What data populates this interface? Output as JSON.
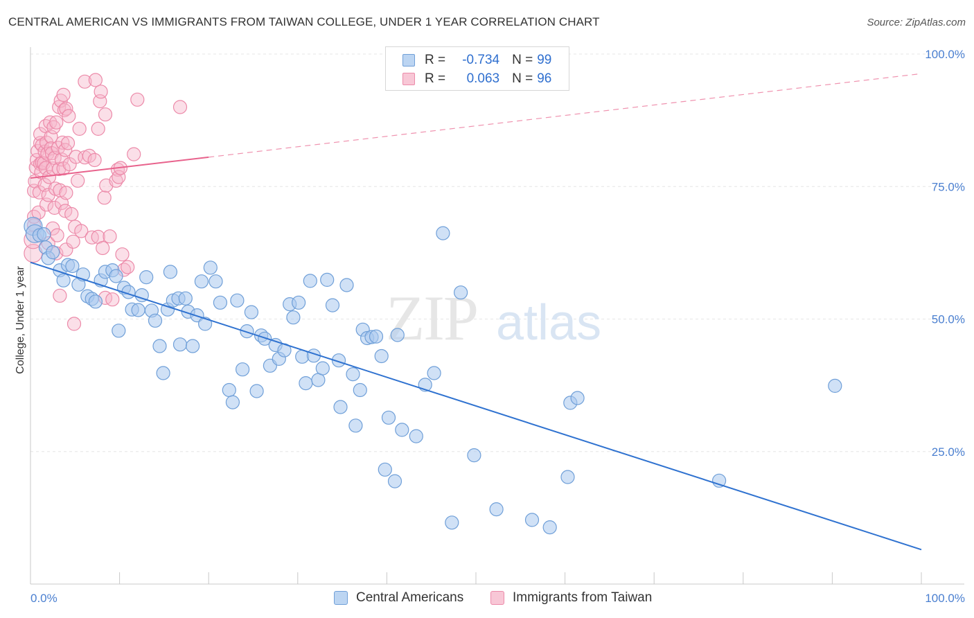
{
  "chart_data": {
    "type": "scatter",
    "title": "CENTRAL AMERICAN VS IMMIGRANTS FROM TAIWAN COLLEGE, UNDER 1 YEAR CORRELATION CHART",
    "source": "Source: ZipAtlas.com",
    "ylabel": "College, Under 1 year",
    "xlim": [
      0,
      100
    ],
    "ylim": [
      0,
      100
    ],
    "x_tick_labels": [
      "0.0%",
      "100.0%"
    ],
    "y_tick_values": [
      25,
      50,
      75,
      100
    ],
    "y_tick_labels": [
      "25.0%",
      "50.0%",
      "75.0%",
      "100.0%"
    ],
    "watermark": {
      "zip": "ZIP",
      "atlas": "atlas"
    },
    "colors": {
      "blue_fill": "#a9c9ee",
      "blue_stroke": "#6f9fd8",
      "blue_line": "#2f72d0",
      "pink_fill": "#f6b8cb",
      "pink_stroke": "#ec8aa9",
      "pink_line": "#e8628c",
      "tick_text": "#4a7fd0",
      "grid": "#e6e6e6"
    },
    "legend": {
      "r_label": "R =",
      "n_label": "N =",
      "rows": [
        {
          "r": "-0.734",
          "n": "99"
        },
        {
          "r": "0.063",
          "n": "96"
        }
      ]
    },
    "series": [
      {
        "name": "Central Americans",
        "trend": {
          "x": [
            0,
            100
          ],
          "y": [
            60.7,
            6.5
          ],
          "dashed_after": null
        },
        "points": [
          [
            0.3,
            67.5
          ],
          [
            0.5,
            66.1
          ],
          [
            1,
            65.8
          ],
          [
            1.5,
            66
          ],
          [
            1.7,
            63.5
          ],
          [
            2,
            61.5
          ],
          [
            2.5,
            62.6
          ],
          [
            3.3,
            59.2
          ],
          [
            3.7,
            57.3
          ],
          [
            4.2,
            60.2
          ],
          [
            4.7,
            60
          ],
          [
            5.4,
            56.5
          ],
          [
            5.9,
            58.4
          ],
          [
            6.4,
            54.3
          ],
          [
            6.9,
            53.8
          ],
          [
            7.3,
            53.3
          ],
          [
            7.9,
            57.3
          ],
          [
            8.4,
            58.9
          ],
          [
            9.2,
            59.2
          ],
          [
            9.6,
            58.1
          ],
          [
            9.9,
            47.8
          ],
          [
            10.5,
            55.9
          ],
          [
            11,
            55.1
          ],
          [
            11.4,
            51.8
          ],
          [
            12.1,
            51.7
          ],
          [
            12.5,
            54.5
          ],
          [
            13,
            57.9
          ],
          [
            13.6,
            51.6
          ],
          [
            14,
            49.7
          ],
          [
            14.5,
            44.9
          ],
          [
            14.9,
            39.8
          ],
          [
            15.4,
            51.8
          ],
          [
            16,
            53.5
          ],
          [
            15.7,
            58.9
          ],
          [
            16.6,
            53.9
          ],
          [
            16.8,
            45.2
          ],
          [
            17.4,
            53.9
          ],
          [
            17.7,
            51.4
          ],
          [
            18.2,
            44.9
          ],
          [
            18.7,
            50.7
          ],
          [
            19.2,
            57.1
          ],
          [
            19.6,
            49.1
          ],
          [
            20.2,
            59.7
          ],
          [
            20.8,
            57.1
          ],
          [
            21.3,
            53.1
          ],
          [
            22.3,
            36.6
          ],
          [
            22.7,
            34.3
          ],
          [
            23.2,
            53.5
          ],
          [
            23.8,
            40.5
          ],
          [
            24.3,
            47.7
          ],
          [
            24.8,
            51.3
          ],
          [
            25.4,
            36.4
          ],
          [
            25.9,
            46.9
          ],
          [
            26.3,
            46.3
          ],
          [
            26.9,
            41.2
          ],
          [
            27.5,
            45.1
          ],
          [
            27.9,
            42.5
          ],
          [
            28.5,
            44.1
          ],
          [
            29.1,
            52.8
          ],
          [
            29.5,
            50.3
          ],
          [
            30.1,
            53.1
          ],
          [
            30.5,
            42.9
          ],
          [
            30.9,
            37.9
          ],
          [
            31.4,
            57.2
          ],
          [
            31.8,
            43.1
          ],
          [
            32.3,
            38.5
          ],
          [
            32.8,
            40.7
          ],
          [
            33.3,
            57.4
          ],
          [
            33.9,
            52.6
          ],
          [
            34.6,
            42.2
          ],
          [
            34.8,
            33.4
          ],
          [
            35.5,
            56.4
          ],
          [
            36.2,
            39.6
          ],
          [
            36.5,
            29.9
          ],
          [
            37,
            36.6
          ],
          [
            37.3,
            48
          ],
          [
            37.8,
            46.4
          ],
          [
            38.3,
            46.6
          ],
          [
            38.8,
            46.7
          ],
          [
            39.4,
            43
          ],
          [
            39.8,
            21.6
          ],
          [
            40.2,
            31.4
          ],
          [
            40.9,
            19.4
          ],
          [
            41.2,
            47
          ],
          [
            41.7,
            29.1
          ],
          [
            43.3,
            27.9
          ],
          [
            44.3,
            37.6
          ],
          [
            45.3,
            39.8
          ],
          [
            46.3,
            66.2
          ],
          [
            47.3,
            11.6
          ],
          [
            48.3,
            55
          ],
          [
            49.8,
            24.3
          ],
          [
            52.3,
            14.1
          ],
          [
            56.3,
            12.1
          ],
          [
            58.3,
            10.7
          ],
          [
            60.3,
            20.2
          ],
          [
            60.6,
            34.2
          ],
          [
            61.4,
            35.1
          ],
          [
            77.3,
            19.5
          ],
          [
            90.3,
            37.4
          ]
        ]
      },
      {
        "name": "Immigrants from Taiwan",
        "trend": {
          "x": [
            0,
            100
          ],
          "y": [
            76.6,
            96.3
          ],
          "dashed_after": 20
        },
        "points": [
          [
            0.3,
            62.4
          ],
          [
            0.3,
            65
          ],
          [
            0.4,
            67.7
          ],
          [
            0.4,
            69.3
          ],
          [
            0.4,
            74.2
          ],
          [
            0.5,
            76
          ],
          [
            0.6,
            78.6
          ],
          [
            0.7,
            80
          ],
          [
            0.8,
            81.7
          ],
          [
            0.9,
            70.1
          ],
          [
            1,
            73.9
          ],
          [
            1.1,
            79.3
          ],
          [
            1.1,
            83.2
          ],
          [
            1.1,
            84.9
          ],
          [
            1.2,
            77.7
          ],
          [
            1.3,
            79.5
          ],
          [
            1.3,
            82.8
          ],
          [
            1.5,
            79.4
          ],
          [
            1.6,
            75.3
          ],
          [
            1.6,
            81.6
          ],
          [
            1.7,
            86.4
          ],
          [
            1.7,
            78.5
          ],
          [
            1.8,
            83.3
          ],
          [
            1.8,
            71.6
          ],
          [
            1.9,
            81.2
          ],
          [
            2,
            73.4
          ],
          [
            2,
            64.3
          ],
          [
            2.1,
            76.8
          ],
          [
            2.2,
            87.1
          ],
          [
            2.3,
            84.4
          ],
          [
            2.3,
            82.2
          ],
          [
            2.4,
            81.3
          ],
          [
            2.5,
            78.4
          ],
          [
            2.5,
            67.1
          ],
          [
            2.6,
            86.2
          ],
          [
            2.7,
            80.4
          ],
          [
            2.7,
            71
          ],
          [
            2.8,
            74.6
          ],
          [
            2.9,
            87.1
          ],
          [
            2.9,
            62.4
          ],
          [
            3,
            65.8
          ],
          [
            3.1,
            82.3
          ],
          [
            3.2,
            78.3
          ],
          [
            3.2,
            90
          ],
          [
            3.3,
            54.4
          ],
          [
            3.3,
            74.3
          ],
          [
            3.4,
            91.2
          ],
          [
            3.5,
            80.1
          ],
          [
            3.5,
            71.9
          ],
          [
            3.6,
            83.3
          ],
          [
            3.7,
            92.3
          ],
          [
            3.7,
            78.4
          ],
          [
            3.8,
            89.4
          ],
          [
            3.9,
            81.9
          ],
          [
            3.9,
            70.4
          ],
          [
            4,
            73.8
          ],
          [
            4,
            63.1
          ],
          [
            4,
            89.7
          ],
          [
            4.2,
            83.2
          ],
          [
            4.3,
            88.3
          ],
          [
            4.4,
            79.2
          ],
          [
            4.6,
            69.8
          ],
          [
            4.8,
            64.6
          ],
          [
            4.9,
            49.1
          ],
          [
            5.1,
            80.6
          ],
          [
            5,
            67.4
          ],
          [
            5.3,
            76.1
          ],
          [
            5.5,
            85.9
          ],
          [
            5.7,
            66.6
          ],
          [
            6.1,
            80.5
          ],
          [
            6.1,
            94.8
          ],
          [
            6.6,
            80.8
          ],
          [
            6.9,
            65.4
          ],
          [
            7.2,
            80
          ],
          [
            7.3,
            95.1
          ],
          [
            7.6,
            85.9
          ],
          [
            7.6,
            65.5
          ],
          [
            7.8,
            91.1
          ],
          [
            7.9,
            92.9
          ],
          [
            8.1,
            63.4
          ],
          [
            8.3,
            72.9
          ],
          [
            8.4,
            54
          ],
          [
            8.4,
            88.6
          ],
          [
            8.5,
            75.2
          ],
          [
            8.9,
            65.6
          ],
          [
            9.2,
            53.7
          ],
          [
            9.6,
            76.1
          ],
          [
            9.8,
            78.2
          ],
          [
            9.9,
            76.8
          ],
          [
            10.1,
            78.5
          ],
          [
            10.3,
            62.2
          ],
          [
            10.5,
            59.3
          ],
          [
            10.9,
            59.8
          ],
          [
            11.6,
            81.1
          ],
          [
            12,
            91.4
          ],
          [
            16.8,
            90
          ]
        ]
      }
    ]
  }
}
